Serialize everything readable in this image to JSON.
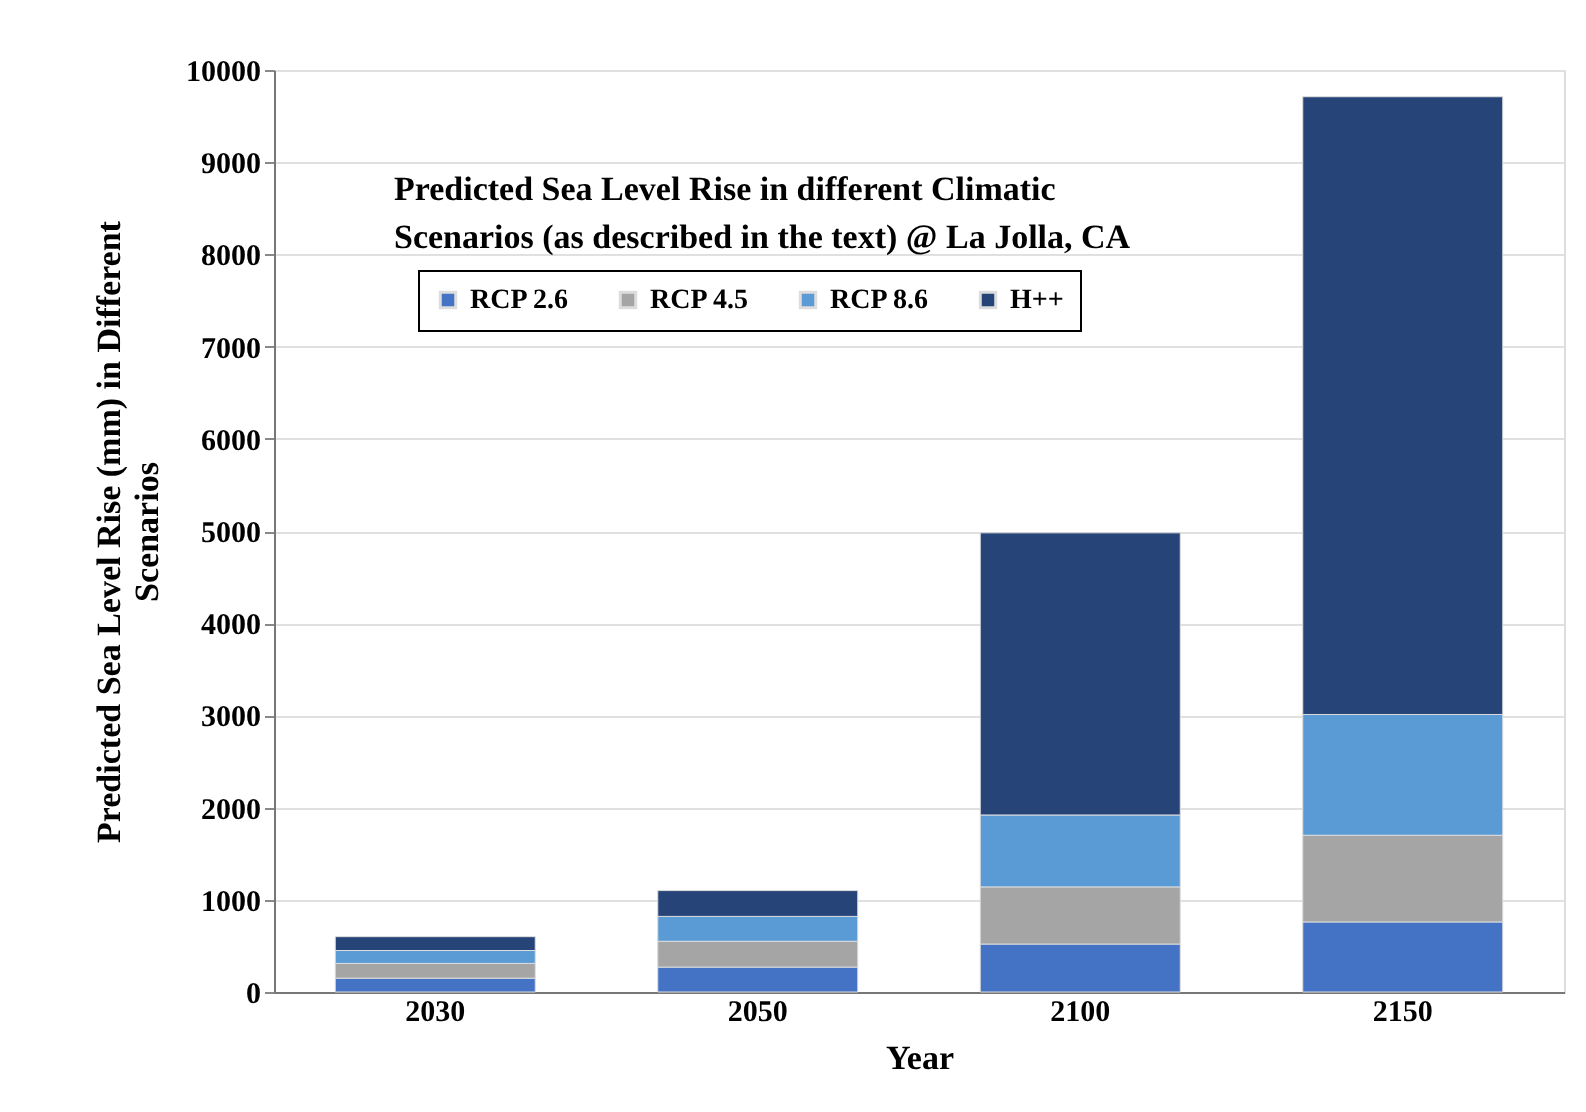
{
  "chart_data": {
    "type": "bar",
    "stacked": true,
    "title": "Predicted Sea Level Rise in different Climatic\nScenarios (as described in the text) @ La Jolla, CA",
    "xlabel": "Year",
    "ylabel": "Predicted Sea Level Rise (mm) in Different\nScenarios",
    "categories": [
      "2030",
      "2050",
      "2100",
      "2150"
    ],
    "series": [
      {
        "name": "RCP 2.6",
        "color": "#4472c4",
        "values": [
          150,
          270,
          520,
          760
        ]
      },
      {
        "name": "RCP 4.5",
        "color": "#a5a5a5",
        "values": [
          160,
          280,
          620,
          940
        ]
      },
      {
        "name": "RCP 8.6",
        "color": "#5b9bd5",
        "values": [
          140,
          270,
          780,
          1310
        ]
      },
      {
        "name": "H++",
        "color": "#264478",
        "values": [
          150,
          280,
          3060,
          6700
        ]
      }
    ],
    "ylim": [
      0,
      10000
    ],
    "yticks": [
      0,
      1000,
      2000,
      3000,
      4000,
      5000,
      6000,
      7000,
      8000,
      9000,
      10000
    ],
    "grid": "y",
    "legend": "top left"
  }
}
